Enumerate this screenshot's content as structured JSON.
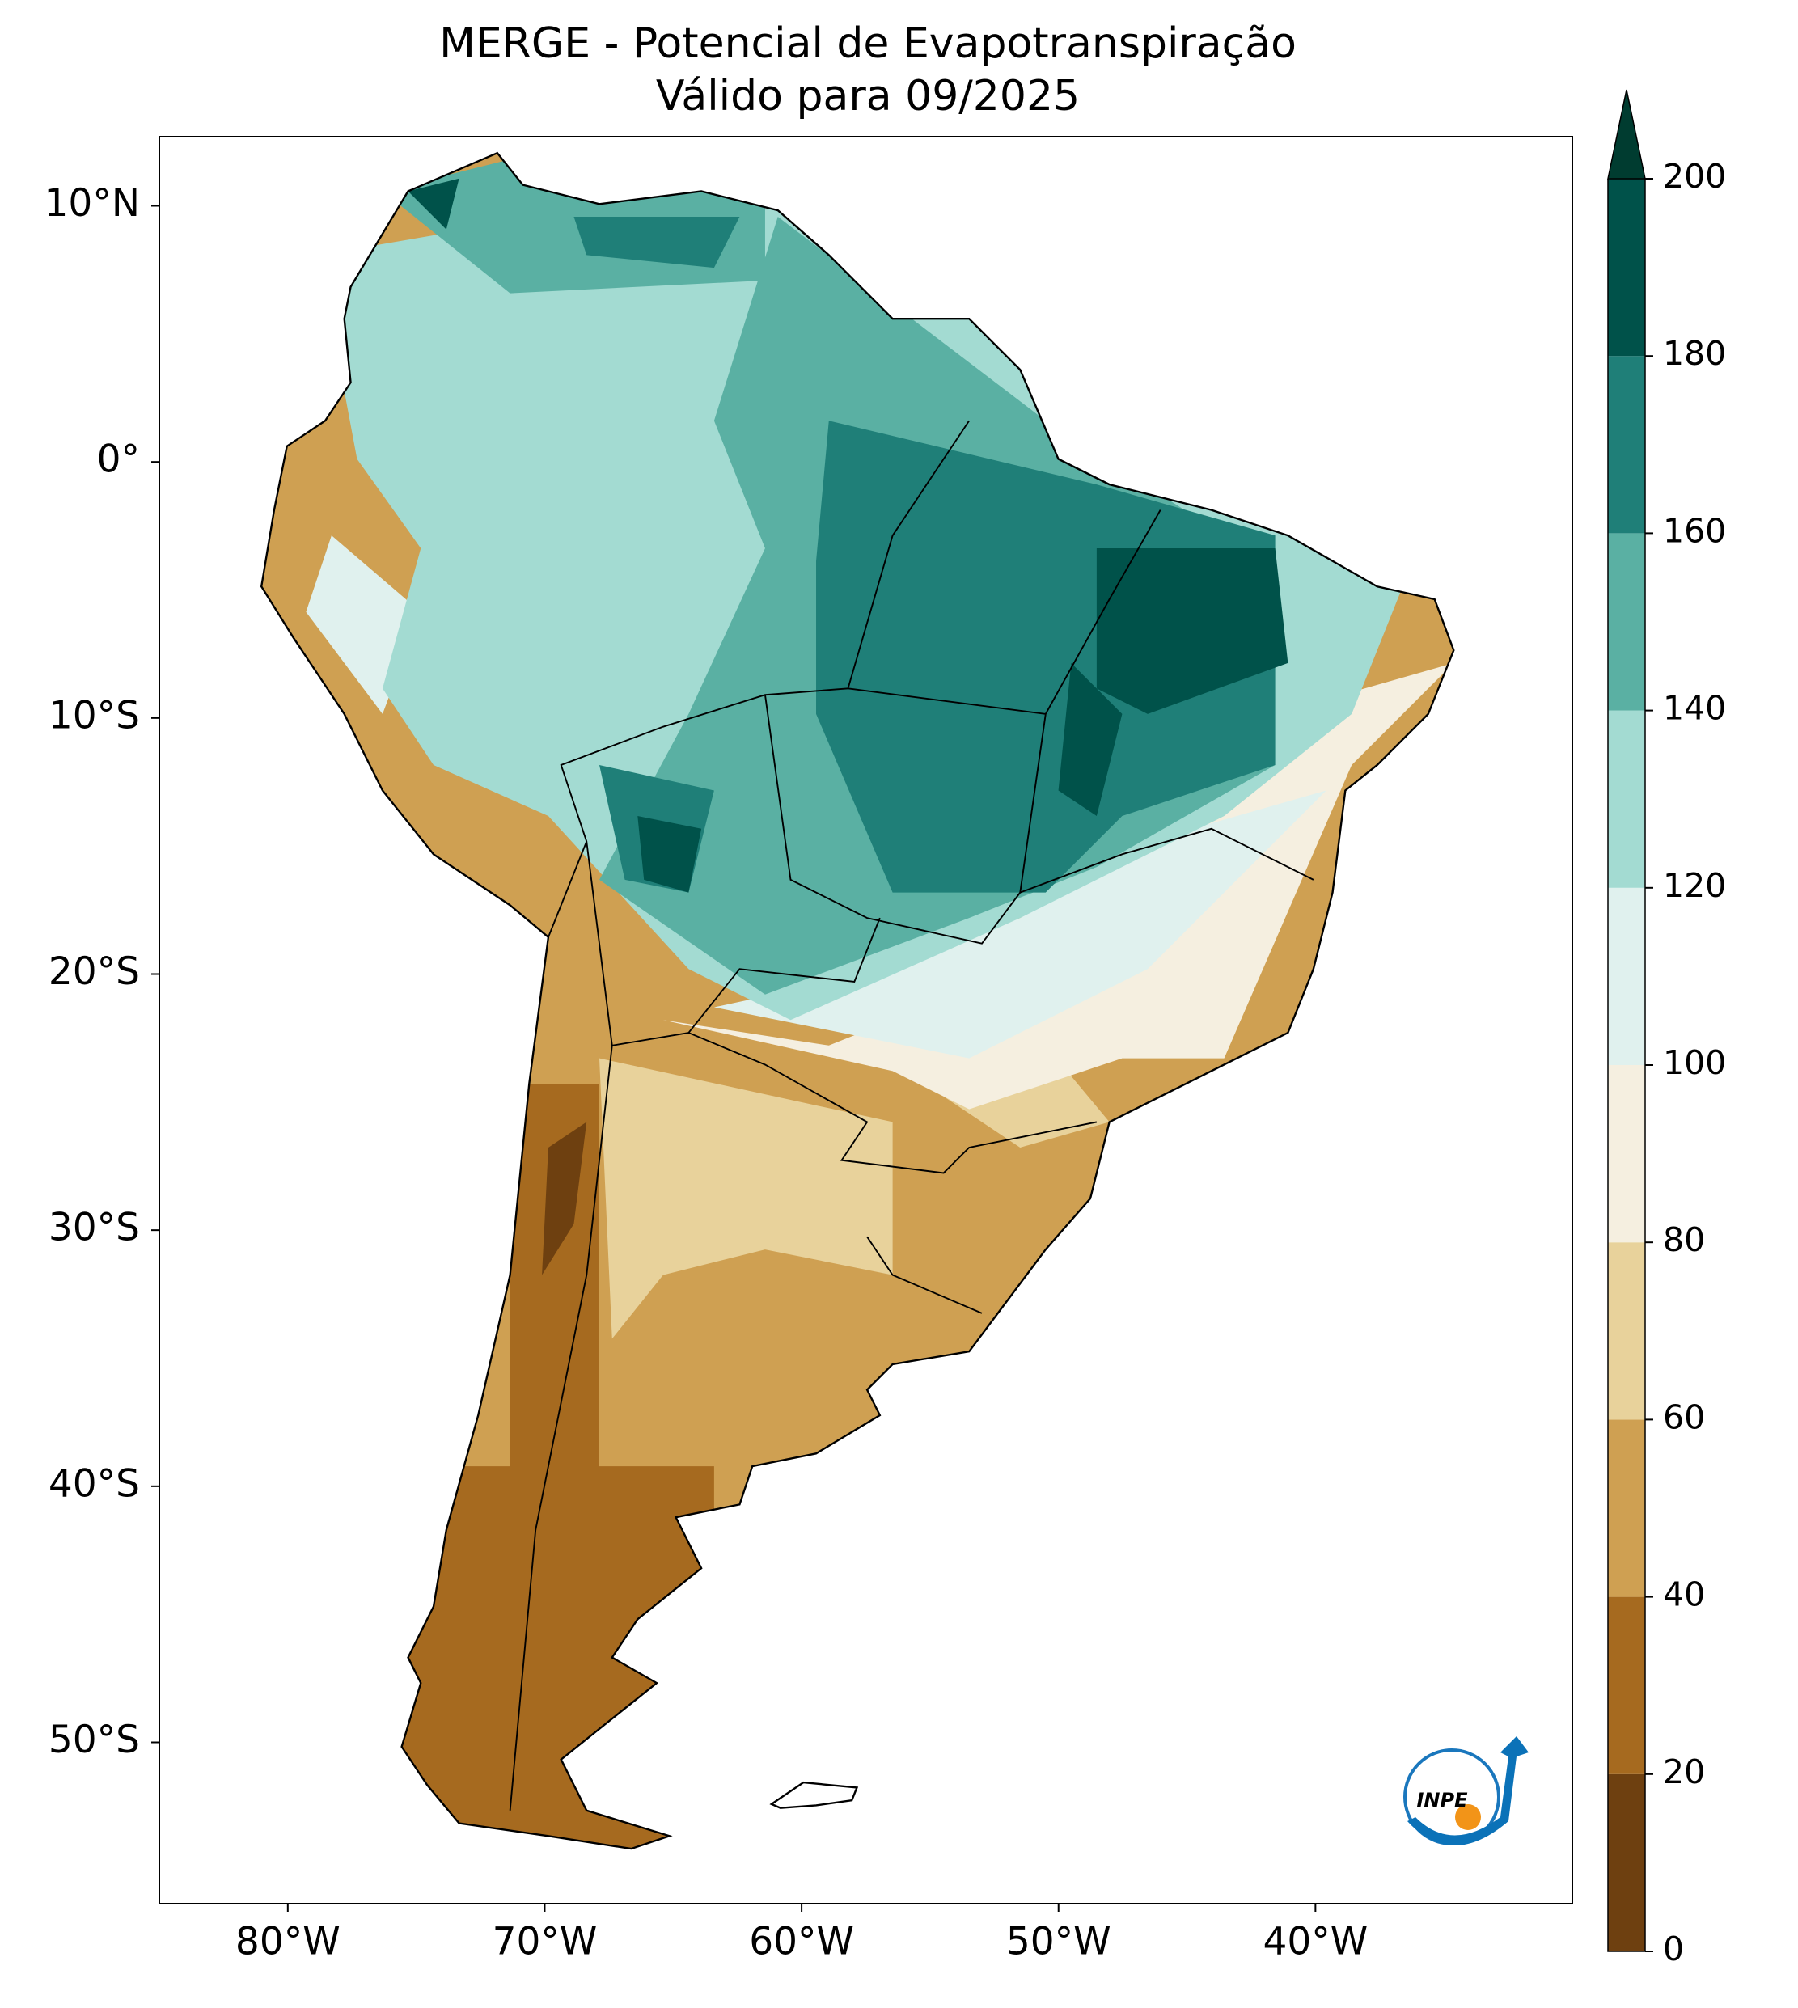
{
  "chart_data": {
    "type": "map",
    "title": "MERGE - Potencial de Evapotranspiração",
    "subtitle": "Válido para 09/2025",
    "xlim": [
      -85,
      -30
    ],
    "ylim": [
      -56.3,
      12.7
    ],
    "xticks": [
      {
        "value": -80,
        "label": "80°W"
      },
      {
        "value": -70,
        "label": "70°W"
      },
      {
        "value": -60,
        "label": "60°W"
      },
      {
        "value": -50,
        "label": "50°W"
      },
      {
        "value": -40,
        "label": "40°W"
      }
    ],
    "yticks": [
      {
        "value": 10,
        "label": "10°N"
      },
      {
        "value": 0,
        "label": "0°"
      },
      {
        "value": -10,
        "label": "10°S"
      },
      {
        "value": -20,
        "label": "20°S"
      },
      {
        "value": -30,
        "label": "30°S"
      },
      {
        "value": -40,
        "label": "40°S"
      },
      {
        "value": -50,
        "label": "50°S"
      }
    ],
    "colorbar": {
      "ticks": [
        0,
        20,
        40,
        60,
        80,
        100,
        120,
        140,
        160,
        180,
        200
      ],
      "colors": [
        "#6e4010",
        "#a66a1f",
        "#cfa052",
        "#e8d29b",
        "#f5efe0",
        "#e0f1ee",
        "#a3dbd2",
        "#5ab0a3",
        "#1f7f78",
        "#00524a"
      ],
      "extend_color": "#003c30"
    },
    "logo": "INPE"
  }
}
